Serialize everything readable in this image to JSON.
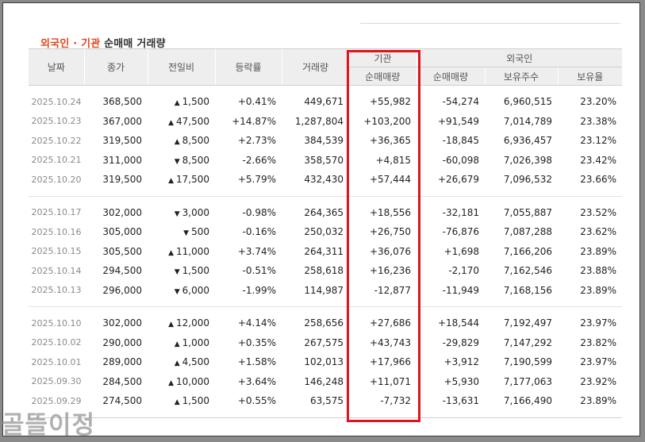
{
  "title": {
    "part1": "외국인 · 기관",
    "part2": " 순매매 거래량"
  },
  "headers": {
    "date": "날짜",
    "close": "종가",
    "change": "전일비",
    "rate": "등락률",
    "volume": "거래량",
    "inst_group": "기관",
    "inst_net": "순매매량",
    "foreign_group": "외국인",
    "foreign_net": "순매매량",
    "foreign_hold": "보유주수",
    "foreign_ratio": "보유율"
  },
  "rows": [
    {
      "date": "2025.10.24",
      "close": "368,500",
      "dir": "up",
      "change": "1,500",
      "rate": "+0.41%",
      "volume": "449,671",
      "inst": "+55,982",
      "foreign": "-54,274",
      "hold": "6,960,515",
      "ratio": "23.20%"
    },
    {
      "date": "2025.10.23",
      "close": "367,000",
      "dir": "up",
      "change": "47,500",
      "rate": "+14.87%",
      "volume": "1,287,804",
      "inst": "+103,200",
      "foreign": "+91,549",
      "hold": "7,014,789",
      "ratio": "23.38%"
    },
    {
      "date": "2025.10.22",
      "close": "319,500",
      "dir": "up",
      "change": "8,500",
      "rate": "+2.73%",
      "volume": "384,539",
      "inst": "+36,365",
      "foreign": "-18,845",
      "hold": "6,936,457",
      "ratio": "23.12%"
    },
    {
      "date": "2025.10.21",
      "close": "311,000",
      "dir": "down",
      "change": "8,500",
      "rate": "-2.66%",
      "volume": "358,570",
      "inst": "+4,815",
      "foreign": "-60,098",
      "hold": "7,026,398",
      "ratio": "23.42%"
    },
    {
      "date": "2025.10.20",
      "close": "319,500",
      "dir": "up",
      "change": "17,500",
      "rate": "+5.79%",
      "volume": "432,430",
      "inst": "+57,444",
      "foreign": "+26,679",
      "hold": "7,096,532",
      "ratio": "23.66%"
    },
    {
      "date": "2025.10.17",
      "close": "302,000",
      "dir": "down",
      "change": "3,000",
      "rate": "-0.98%",
      "volume": "264,365",
      "inst": "+18,556",
      "foreign": "-32,181",
      "hold": "7,055,887",
      "ratio": "23.52%"
    },
    {
      "date": "2025.10.16",
      "close": "305,000",
      "dir": "down",
      "change": "500",
      "rate": "-0.16%",
      "volume": "250,032",
      "inst": "+26,750",
      "foreign": "-76,876",
      "hold": "7,087,288",
      "ratio": "23.62%"
    },
    {
      "date": "2025.10.15",
      "close": "305,500",
      "dir": "up",
      "change": "11,000",
      "rate": "+3.74%",
      "volume": "264,311",
      "inst": "+36,076",
      "foreign": "+1,698",
      "hold": "7,166,206",
      "ratio": "23.89%"
    },
    {
      "date": "2025.10.14",
      "close": "294,500",
      "dir": "down",
      "change": "1,500",
      "rate": "-0.51%",
      "volume": "258,618",
      "inst": "+16,236",
      "foreign": "-2,170",
      "hold": "7,162,546",
      "ratio": "23.88%"
    },
    {
      "date": "2025.10.13",
      "close": "296,000",
      "dir": "down",
      "change": "6,000",
      "rate": "-1.99%",
      "volume": "114,987",
      "inst": "-12,877",
      "foreign": "-11,949",
      "hold": "7,168,156",
      "ratio": "23.89%"
    },
    {
      "date": "2025.10.10",
      "close": "302,000",
      "dir": "up",
      "change": "12,000",
      "rate": "+4.14%",
      "volume": "258,656",
      "inst": "+27,686",
      "foreign": "+18,544",
      "hold": "7,192,497",
      "ratio": "23.97%"
    },
    {
      "date": "2025.10.02",
      "close": "290,000",
      "dir": "up",
      "change": "1,000",
      "rate": "+0.35%",
      "volume": "267,575",
      "inst": "+43,743",
      "foreign": "-29,829",
      "hold": "7,147,292",
      "ratio": "23.82%"
    },
    {
      "date": "2025.10.01",
      "close": "289,000",
      "dir": "up",
      "change": "4,500",
      "rate": "+1.58%",
      "volume": "102,013",
      "inst": "+17,966",
      "foreign": "+3,912",
      "hold": "7,190,599",
      "ratio": "23.97%"
    },
    {
      "date": "2025.09.30",
      "close": "284,500",
      "dir": "up",
      "change": "10,000",
      "rate": "+3.64%",
      "volume": "146,248",
      "inst": "+11,071",
      "foreign": "+5,930",
      "hold": "7,177,063",
      "ratio": "23.92%"
    },
    {
      "date": "2025.09.29",
      "close": "274,500",
      "dir": "up",
      "change": "1,500",
      "rate": "+0.55%",
      "volume": "63,575",
      "inst": "-7,732",
      "foreign": "-13,631",
      "hold": "7,166,490",
      "ratio": "23.89%"
    }
  ],
  "arrows": {
    "up": "▲",
    "down": "▼"
  },
  "colors": {
    "up": "#d61a1a",
    "down": "#1a5fc4",
    "highlight": "#e0141e",
    "title_accent": "#e0451e"
  },
  "watermark": "골뜰이정"
}
